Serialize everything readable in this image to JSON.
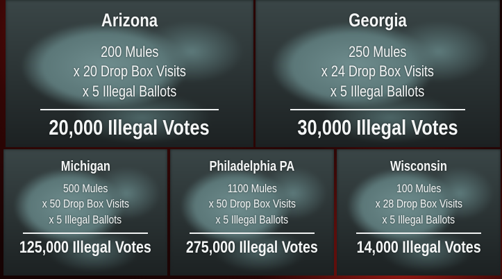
{
  "panels": [
    {
      "title": "Arizona",
      "mules": "200 Mules",
      "visits": "x 20 Drop Box Visits",
      "ballots": "x 5 Illegal Ballots",
      "total": "20,000 Illegal Votes"
    },
    {
      "title": "Georgia",
      "mules": "250 Mules",
      "visits": "x 24 Drop Box Visits",
      "ballots": "x 5 Illegal Ballots",
      "total": "30,000 Illegal Votes"
    },
    {
      "title": "Michigan",
      "mules": "500 Mules",
      "visits": "x 50 Drop Box Visits",
      "ballots": "x 5 Illegal Ballots",
      "total": "125,000 Illegal Votes"
    },
    {
      "title": "Philadelphia PA",
      "mules": "1100 Mules",
      "visits": "x 50 Drop Box Visits",
      "ballots": "x 5 Illegal Ballots",
      "total": "275,000 Illegal Votes"
    },
    {
      "title": "Wisconsin",
      "mules": "100 Mules",
      "visits": "x 28 Drop Box Visits",
      "ballots": "x 5 Illegal Ballots",
      "total": "14,000 Illegal Votes"
    }
  ]
}
